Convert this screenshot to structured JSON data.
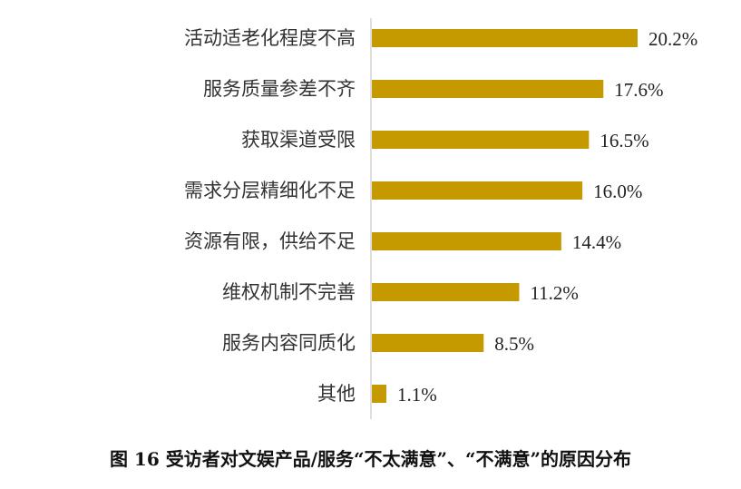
{
  "chart_data": {
    "type": "bar",
    "orientation": "horizontal",
    "categories": [
      "活动适老化程度不高",
      "服务质量参差不齐",
      "获取渠道受限",
      "需求分层精细化不足",
      "资源有限，供给不足",
      "维权机制不完善",
      "服务内容同质化",
      "其他"
    ],
    "values": [
      20.2,
      17.6,
      16.5,
      16.0,
      14.4,
      11.2,
      8.5,
      1.1
    ],
    "value_labels": [
      "20.2%",
      "17.6%",
      "16.5%",
      "16.0%",
      "14.4%",
      "11.2%",
      "8.5%",
      "1.1%"
    ],
    "xlim": [
      0,
      22
    ],
    "bar_color": "#C49A00",
    "grid": false,
    "caption": "图 16 受访者对文娱产品/服务“不太满意”、“不满意”的原因分布"
  }
}
